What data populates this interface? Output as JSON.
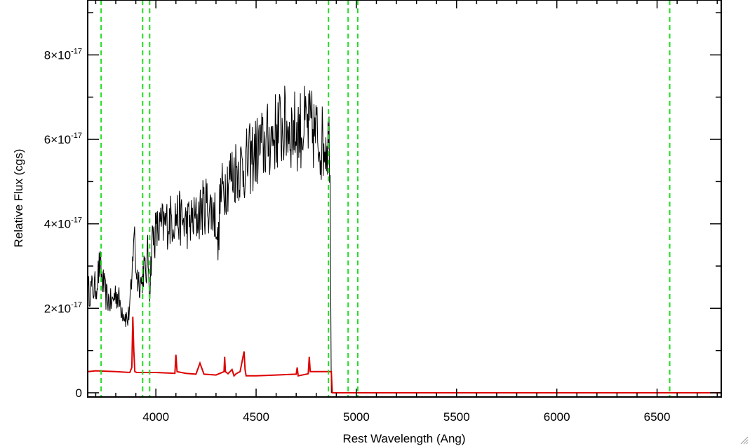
{
  "chart_data": {
    "type": "line",
    "title": "",
    "xlabel": "Rest Wavelength (Ang)",
    "ylabel": "Relative Flux (cgs)",
    "xlim": [
      3660,
      6820
    ],
    "ylim": [
      -1e-18,
      9.3e-17
    ],
    "x_ticks": [
      {
        "value": 4000,
        "label": "4000"
      },
      {
        "value": 4500,
        "label": "4500"
      },
      {
        "value": 5000,
        "label": "5000"
      },
      {
        "value": 5500,
        "label": "5500"
      },
      {
        "value": 6000,
        "label": "6000"
      },
      {
        "value": 6500,
        "label": "6500"
      }
    ],
    "y_ticks": [
      {
        "value": 0,
        "mant": "0",
        "exp": ""
      },
      {
        "value": 2e-17,
        "mant": "2×10",
        "exp": "-17"
      },
      {
        "value": 4e-17,
        "mant": "4×10",
        "exp": "-17"
      },
      {
        "value": 6e-17,
        "mant": "6×10",
        "exp": "-17"
      },
      {
        "value": 8e-17,
        "mant": "8×10",
        "exp": "-17"
      }
    ],
    "x_minor_step": 100,
    "y_minor_step": 1e-17,
    "grid": false,
    "vertical_markers": [
      3727,
      3934,
      3969,
      4861,
      4959,
      5007,
      6563
    ],
    "series": [
      {
        "color": "#000000",
        "style": "noisy",
        "noise": 0.32,
        "x": [
          3660,
          3700,
          3720,
          3750,
          3780,
          3800,
          3830,
          3860,
          3880,
          3890,
          3900,
          3910,
          3930,
          3940,
          3950,
          3960,
          3970,
          3980,
          4000,
          4050,
          4100,
          4150,
          4200,
          4250,
          4300,
          4310,
          4320,
          4350,
          4400,
          4450,
          4500,
          4550,
          4600,
          4650,
          4700,
          4750,
          4780,
          4800,
          4830,
          4850,
          4870,
          4875
        ],
        "y": [
          2.4e-17,
          2.5e-17,
          3e-17,
          2.3e-17,
          2.1e-17,
          2.4e-17,
          2e-17,
          1.7e-17,
          2.5e-17,
          4e-17,
          3e-17,
          2.7e-17,
          2.6e-17,
          3e-17,
          2.7e-17,
          3.3e-17,
          2.4e-17,
          3.6e-17,
          3.8e-17,
          4e-17,
          4.2e-17,
          4e-17,
          4.1e-17,
          4.5e-17,
          4.2e-17,
          3.3e-17,
          4.6e-17,
          5e-17,
          5.3e-17,
          5.4e-17,
          5.7e-17,
          5.9e-17,
          6.2e-17,
          6.3e-17,
          6.2e-17,
          6.3e-17,
          6.2e-17,
          6.1e-17,
          5.9e-17,
          6e-17,
          5.9e-17,
          0
        ]
      },
      {
        "color": "#dd0000",
        "style": "smooth",
        "x": [
          3660,
          3700,
          3800,
          3870,
          3880,
          3885,
          3890,
          3895,
          3905,
          4000,
          4095,
          4100,
          4106,
          4150,
          4200,
          4220,
          4240,
          4300,
          4340,
          4343,
          4347,
          4360,
          4380,
          4390,
          4400,
          4420,
          4440,
          4445,
          4450,
          4470,
          4500,
          4600,
          4700,
          4705,
          4710,
          4760,
          4765,
          4770,
          4800,
          4860,
          4875,
          4880,
          5000,
          6000,
          6820
        ],
        "y": [
          5e-18,
          5.2e-18,
          5e-18,
          4.8e-18,
          6e-18,
          1.8e-17,
          1e-17,
          5e-18,
          4.8e-18,
          4.8e-18,
          4.6e-18,
          9e-18,
          5e-18,
          4.6e-18,
          4.4e-18,
          7e-18,
          4.4e-18,
          4.2e-18,
          5e-18,
          8.5e-18,
          5e-18,
          4.5e-18,
          5.5e-18,
          4e-18,
          4.5e-18,
          5e-18,
          9.8e-18,
          5.5e-18,
          4e-18,
          4e-18,
          4e-18,
          4.2e-18,
          4.4e-18,
          6e-18,
          4e-18,
          4.5e-18,
          8.5e-18,
          5e-18,
          5e-18,
          5e-18,
          5e-18,
          0,
          0,
          0,
          0
        ]
      }
    ]
  }
}
